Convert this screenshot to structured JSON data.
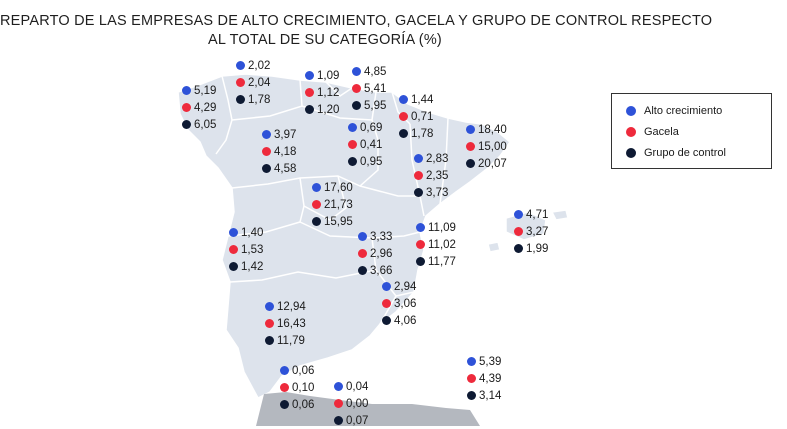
{
  "title_line1": "REPARTO DE LAS EMPRESAS DE ALTO CRECIMIENTO, GACELA Y GRUPO DE CONTROL RESPECTO",
  "title_line2": "AL TOTAL DE SU CATEGORÍA (%)",
  "colors": {
    "alto": "#2e52d8",
    "gacela": "#ee2a3c",
    "control": "#0e1a33",
    "land": "#dde3ec",
    "border": "#ffffff",
    "outside": "#b4b8bf"
  },
  "legend": {
    "alto_label": "Alto crecimiento",
    "gacela_label": "Gacela",
    "control_label": "Grupo de control"
  },
  "regions": [
    {
      "values": [
        "5,19",
        "4,29",
        "6,05"
      ]
    },
    {
      "values": [
        "2,02",
        "2,04",
        "1,78"
      ]
    },
    {
      "values": [
        "1,09",
        "1,12",
        "1,20"
      ]
    },
    {
      "values": [
        "4,85",
        "5,41",
        "5,95"
      ]
    },
    {
      "values": [
        "1,44",
        "0,71",
        "1,78"
      ]
    },
    {
      "values": [
        "18,40",
        "15,00",
        "20,07"
      ]
    },
    {
      "values": [
        "3,97",
        "4,18",
        "4,58"
      ]
    },
    {
      "values": [
        "0,69",
        "0,41",
        "0,95"
      ]
    },
    {
      "values": [
        "2,83",
        "2,35",
        "3,73"
      ]
    },
    {
      "values": [
        "17,60",
        "21,73",
        "15,95"
      ]
    },
    {
      "values": [
        "4,71",
        "3,27",
        "1,99"
      ]
    },
    {
      "values": [
        "1,40",
        "1,53",
        "1,42"
      ]
    },
    {
      "values": [
        "3,33",
        "2,96",
        "3,66"
      ]
    },
    {
      "values": [
        "11,09",
        "11,02",
        "11,77"
      ]
    },
    {
      "values": [
        "2,94",
        "3,06",
        "4,06"
      ]
    },
    {
      "values": [
        "12,94",
        "16,43",
        "11,79"
      ]
    },
    {
      "values": [
        "5,39",
        "4,39",
        "3,14"
      ]
    },
    {
      "values": [
        "0,06",
        "0,10",
        "0,06"
      ]
    },
    {
      "values": [
        "0,04",
        "0,00",
        "0,07"
      ]
    }
  ]
}
